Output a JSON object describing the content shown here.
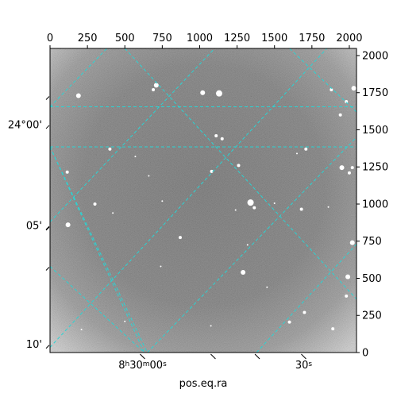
{
  "chart_data": {
    "type": "image",
    "image_style": "grayscale astronomical image with a cyan dashed world-coordinate grid",
    "colors": {
      "grid": "#2ad4d4",
      "frame": "#000000",
      "background": "#ffffff"
    },
    "xlabel": "pos.eq.ra",
    "pixel_axes": {
      "x_range": [
        0,
        2048
      ],
      "y_range": [
        0,
        2048
      ],
      "top_ticks": [
        0,
        250,
        500,
        750,
        1000,
        1250,
        1500,
        1750,
        2000
      ],
      "right_ticks": [
        0,
        250,
        500,
        750,
        1000,
        1250,
        1500,
        1750,
        2000
      ]
    },
    "world_axes": {
      "ra_tick_labels": [
        {
          "label": "8h30m00s",
          "x": 618,
          "y": 0
        },
        {
          "label": "30s",
          "x": 1695,
          "y": 0
        }
      ],
      "dec_tick_labels": [
        {
          "label": "24°00'",
          "x": 0,
          "y": 1535
        },
        {
          "label": "05'",
          "x": 0,
          "y": 855
        },
        {
          "label": "10'",
          "x": 0,
          "y": 55
        }
      ]
    },
    "grid_lines": {
      "dash": "dashed",
      "family_a": [
        [
          [
            0,
            1655
          ],
          [
            2048,
            1655
          ]
        ],
        [
          [
            0,
            1655
          ],
          [
            380,
            2048
          ]
        ],
        [
          [
            0,
            880
          ],
          [
            1100,
            2048
          ]
        ],
        [
          [
            0,
            35
          ],
          [
            1850,
            2048
          ]
        ],
        [
          [
            650,
            0
          ],
          [
            2048,
            1450
          ]
        ],
        [
          [
            1380,
            0
          ],
          [
            2048,
            730
          ]
        ]
      ],
      "family_b": [
        [
          [
            0,
            1385
          ],
          [
            2048,
            1385
          ]
        ],
        [
          [
            0,
            1385
          ],
          [
            650,
            0
          ]
        ],
        [
          [
            0,
            1385
          ],
          [
            630,
            0
          ]
        ],
        [
          [
            0,
            580
          ],
          [
            630,
            0
          ]
        ],
        [
          [
            500,
            2048
          ],
          [
            2048,
            360
          ]
        ],
        [
          [
            1600,
            2048
          ],
          [
            2048,
            1620
          ]
        ]
      ]
    },
    "stars": [
      {
        "x": 190,
        "y": 1730,
        "r": 3
      },
      {
        "x": 710,
        "y": 1800,
        "r": 3
      },
      {
        "x": 690,
        "y": 1770,
        "r": 2
      },
      {
        "x": 1130,
        "y": 1745,
        "r": 4
      },
      {
        "x": 1020,
        "y": 1750,
        "r": 3
      },
      {
        "x": 1880,
        "y": 1770,
        "r": 2
      },
      {
        "x": 1980,
        "y": 1690,
        "r": 2
      },
      {
        "x": 2030,
        "y": 1780,
        "r": 3
      },
      {
        "x": 1940,
        "y": 1600,
        "r": 2
      },
      {
        "x": 400,
        "y": 1370,
        "r": 2
      },
      {
        "x": 1110,
        "y": 1460,
        "r": 2
      },
      {
        "x": 1150,
        "y": 1440,
        "r": 2
      },
      {
        "x": 1710,
        "y": 1370,
        "r": 2
      },
      {
        "x": 1650,
        "y": 1340,
        "r": 1
      },
      {
        "x": 570,
        "y": 1320,
        "r": 1
      },
      {
        "x": 1260,
        "y": 1260,
        "r": 2
      },
      {
        "x": 1080,
        "y": 1220,
        "r": 2
      },
      {
        "x": 1950,
        "y": 1245,
        "r": 3
      },
      {
        "x": 2020,
        "y": 1245,
        "r": 2
      },
      {
        "x": 2000,
        "y": 1210,
        "r": 2
      },
      {
        "x": 115,
        "y": 1215,
        "r": 2
      },
      {
        "x": 660,
        "y": 1190,
        "r": 1
      },
      {
        "x": 1340,
        "y": 1010,
        "r": 4
      },
      {
        "x": 1365,
        "y": 975,
        "r": 2
      },
      {
        "x": 1500,
        "y": 1005,
        "r": 1
      },
      {
        "x": 1240,
        "y": 960,
        "r": 1
      },
      {
        "x": 300,
        "y": 1000,
        "r": 2
      },
      {
        "x": 420,
        "y": 940,
        "r": 1
      },
      {
        "x": 1680,
        "y": 965,
        "r": 2
      },
      {
        "x": 1860,
        "y": 980,
        "r": 1
      },
      {
        "x": 120,
        "y": 860,
        "r": 3
      },
      {
        "x": 870,
        "y": 775,
        "r": 2
      },
      {
        "x": 1320,
        "y": 725,
        "r": 1
      },
      {
        "x": 2020,
        "y": 740,
        "r": 3
      },
      {
        "x": 1290,
        "y": 540,
        "r": 3
      },
      {
        "x": 1990,
        "y": 510,
        "r": 3
      },
      {
        "x": 1980,
        "y": 380,
        "r": 2
      },
      {
        "x": 1700,
        "y": 270,
        "r": 2
      },
      {
        "x": 1600,
        "y": 205,
        "r": 2
      },
      {
        "x": 1890,
        "y": 160,
        "r": 2
      },
      {
        "x": 1075,
        "y": 180,
        "r": 1
      },
      {
        "x": 210,
        "y": 155,
        "r": 1
      },
      {
        "x": 750,
        "y": 1020,
        "r": 1
      },
      {
        "x": 500,
        "y": 210,
        "r": 1
      },
      {
        "x": 1450,
        "y": 440,
        "r": 1
      },
      {
        "x": 740,
        "y": 580,
        "r": 1
      }
    ]
  }
}
